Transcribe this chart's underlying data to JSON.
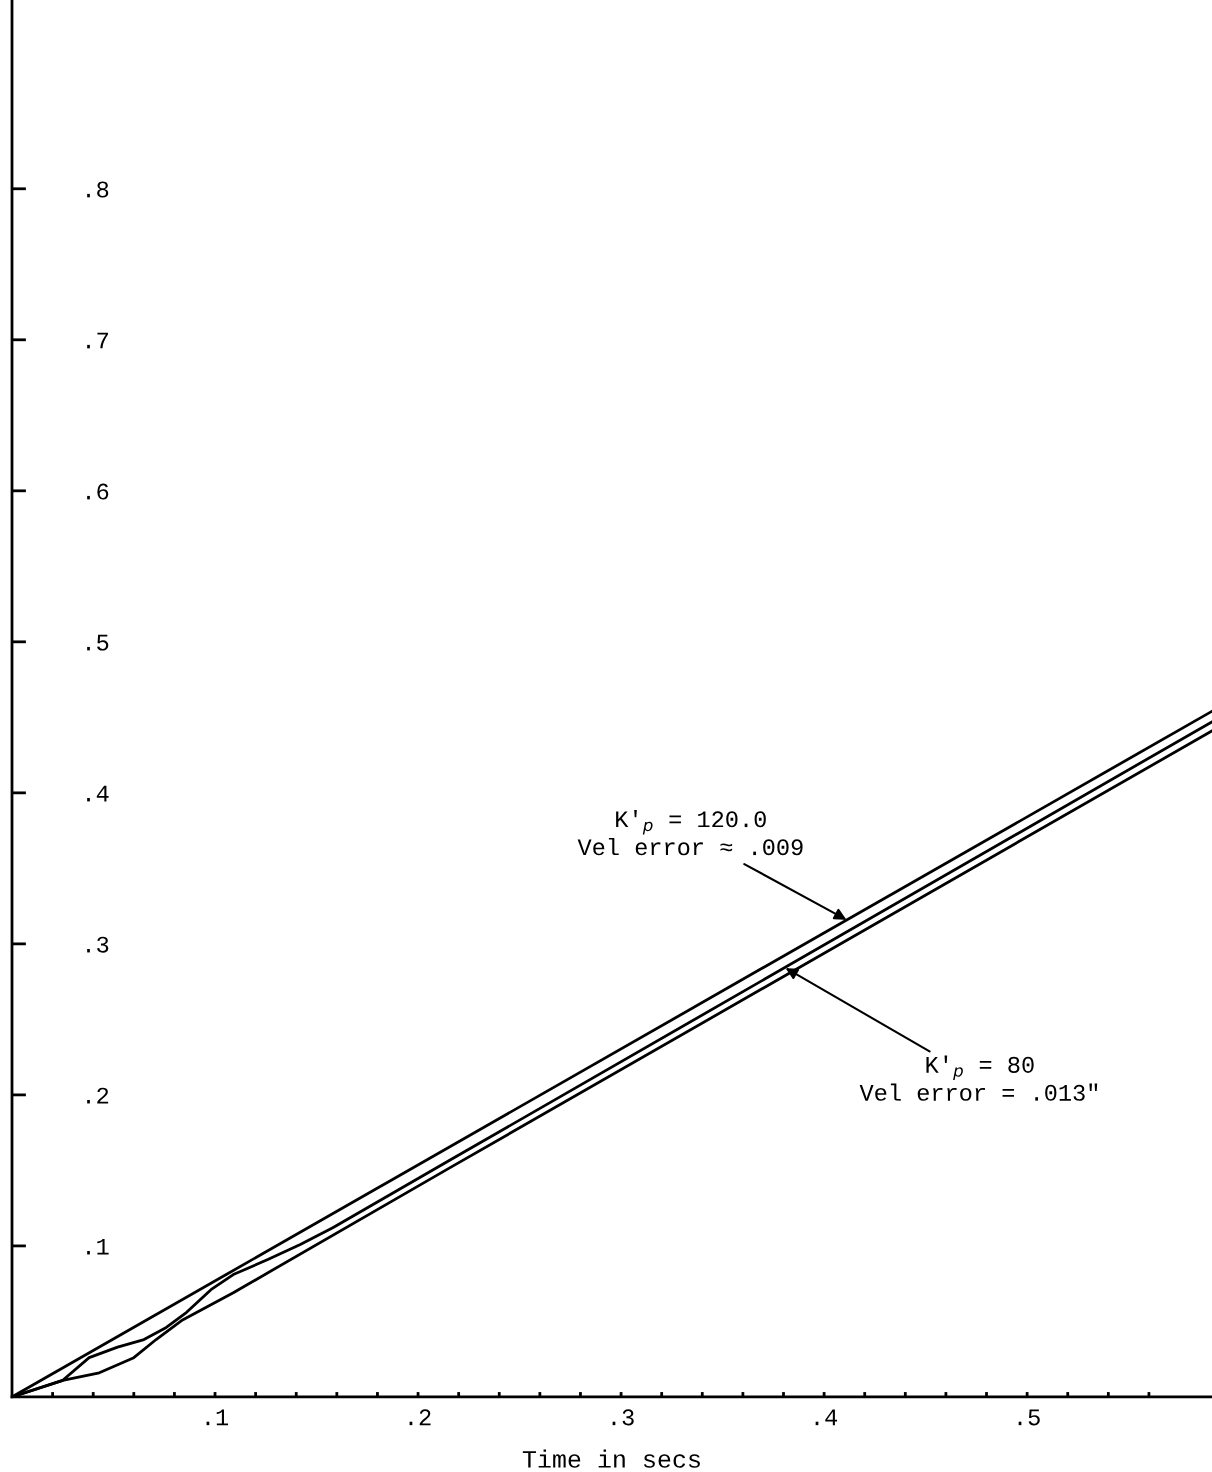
{
  "chart_data": {
    "type": "line",
    "xlabel": "Time in secs",
    "series": [
      {
        "color": "#000000",
        "x": [
          0,
          0.591
        ],
        "values": [
          0,
          0.454
        ]
      },
      {
        "color": "#000000",
        "x": [
          0,
          0.025,
          0.038,
          0.052,
          0.065,
          0.076,
          0.086,
          0.098,
          0.109,
          0.126,
          0.142,
          0.158,
          0.216,
          0.591
        ],
        "values": [
          0,
          0.011,
          0.026,
          0.033,
          0.038,
          0.046,
          0.056,
          0.071,
          0.081,
          0.091,
          0.101,
          0.112,
          0.157,
          0.447
        ]
      },
      {
        "color": "#000000",
        "x": [
          0,
          0.025,
          0.043,
          0.06,
          0.071,
          0.084,
          0.109,
          0.216,
          0.591
        ],
        "values": [
          0,
          0.011,
          0.016,
          0.026,
          0.038,
          0.051,
          0.069,
          0.152,
          0.441
        ]
      }
    ],
    "annotations": [
      {
        "text": "K'$_{p}$ = 120.0\nVel error ≈ .009",
        "x": 0.411,
        "y": 0.316
      },
      {
        "text": "K'$_{p}$ = 80\nVel error = .013\"",
        "x": 0.381,
        "y": 0.284
      }
    ],
    "xlim": [
      0,
      0.591
    ],
    "ylim": [
      0,
      0.925
    ],
    "xticks": [
      {
        "value": 0.02,
        "label": null
      },
      {
        "value": 0.04,
        "label": null
      },
      {
        "value": 0.06,
        "label": null
      },
      {
        "value": 0.08,
        "label": null
      },
      {
        "value": 0.1,
        "label": ".1"
      },
      {
        "value": 0.12,
        "label": null
      },
      {
        "value": 0.14,
        "label": null
      },
      {
        "value": 0.16,
        "label": null
      },
      {
        "value": 0.18,
        "label": null
      },
      {
        "value": 0.2,
        "label": ".2"
      },
      {
        "value": 0.22,
        "label": null
      },
      {
        "value": 0.24,
        "label": null
      },
      {
        "value": 0.26,
        "label": null
      },
      {
        "value": 0.28,
        "label": null
      },
      {
        "value": 0.3,
        "label": ".3"
      },
      {
        "value": 0.32,
        "label": null
      },
      {
        "value": 0.34,
        "label": null
      },
      {
        "value": 0.36,
        "label": null
      },
      {
        "value": 0.38,
        "label": null
      },
      {
        "value": 0.4,
        "label": ".4"
      },
      {
        "value": 0.42,
        "label": null
      },
      {
        "value": 0.44,
        "label": null
      },
      {
        "value": 0.46,
        "label": null
      },
      {
        "value": 0.48,
        "label": null
      },
      {
        "value": 0.5,
        "label": ".5"
      },
      {
        "value": 0.52,
        "label": null
      },
      {
        "value": 0.54,
        "label": null
      },
      {
        "value": 0.56,
        "label": null
      }
    ],
    "yticks": [
      {
        "value": 0.1,
        "label": ".1"
      },
      {
        "value": 0.2,
        "label": ".2"
      },
      {
        "value": 0.3,
        "label": ".3"
      },
      {
        "value": 0.4,
        "label": ".4"
      },
      {
        "value": 0.5,
        "label": ".5"
      },
      {
        "value": 0.6,
        "label": ".6"
      },
      {
        "value": 0.7,
        "label": ".7"
      },
      {
        "value": 0.8,
        "label": ".8"
      }
    ],
    "grid": false,
    "legend": false,
    "marker": "none",
    "line_style": "solid"
  }
}
